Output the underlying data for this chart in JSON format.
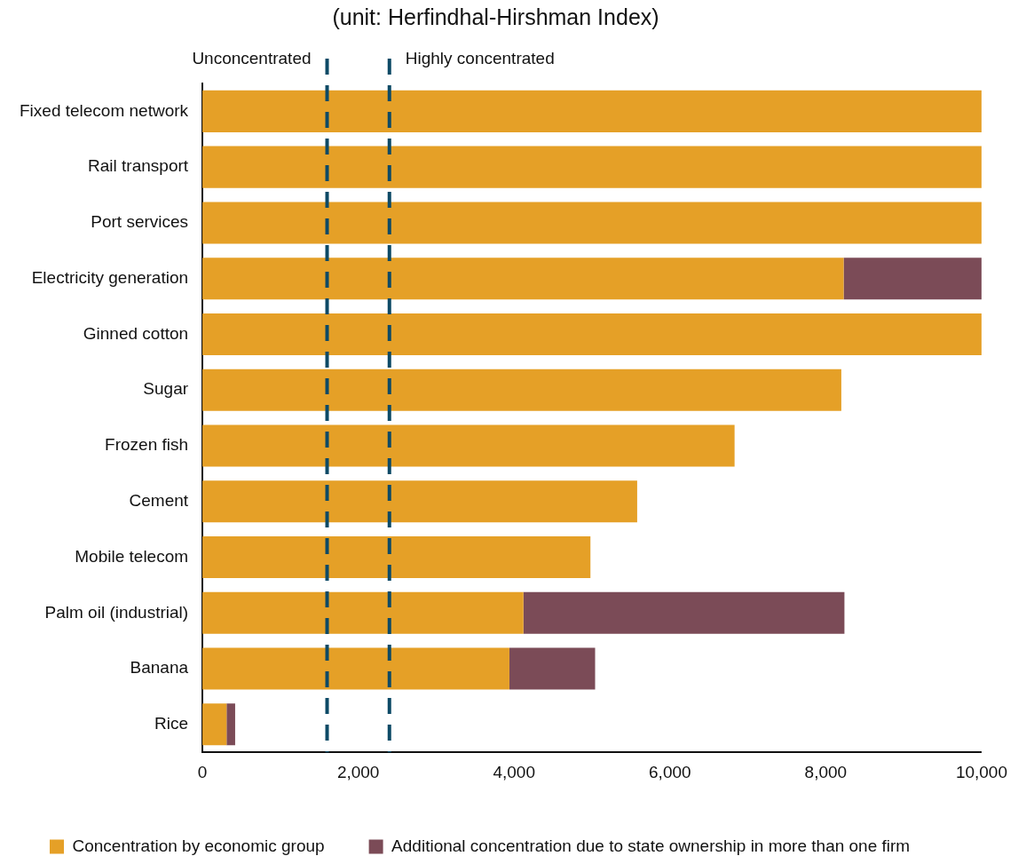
{
  "chart_data": {
    "type": "bar",
    "orientation": "horizontal",
    "stacked": true,
    "title": "(unit: Herfindhal-Hirshman Index)",
    "categories": [
      "Fixed telecom network",
      "Rail transport",
      "Port services",
      "Electricity generation",
      "Ginned cotton",
      "Sugar",
      "Frozen fish",
      "Cement",
      "Mobile telecom",
      "Palm oil (industrial)",
      "Banana",
      "Rice"
    ],
    "series": [
      {
        "name": "Concentration by economic group",
        "color": "#e5a027",
        "values": [
          10000,
          10000,
          10000,
          8230,
          10000,
          8200,
          6830,
          5580,
          4980,
          4120,
          3940,
          310
        ]
      },
      {
        "name": "Additional concentration due to state ownership in more than one firm",
        "color": "#7b4b57",
        "values": [
          null,
          null,
          null,
          1770,
          null,
          null,
          null,
          null,
          null,
          4120,
          1100,
          110
        ]
      }
    ],
    "xlim": [
      0,
      10000
    ],
    "xticks": [
      0,
      {
        "value": 2000,
        "label": "2,000"
      },
      {
        "value": 4000,
        "label": "4,000"
      },
      {
        "value": 6000,
        "label": "6,000"
      },
      {
        "value": 8000,
        "label": "8,000"
      },
      {
        "value": 10000,
        "label": "10,000"
      }
    ],
    "ref_lines": [
      {
        "axis": "x",
        "value": 1600,
        "label": "Unconcentrated",
        "color": "#0d4a66",
        "line_style": "dashed"
      },
      {
        "axis": "x",
        "value": 2400,
        "label": "Highly concentrated",
        "color": "#0d4a66",
        "line_style": "dashed"
      }
    ],
    "grid": false,
    "legend": "bottom left"
  }
}
